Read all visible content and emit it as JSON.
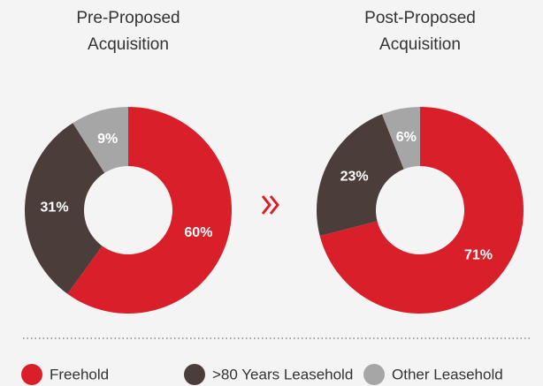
{
  "chart_data": [
    {
      "type": "donut",
      "title": "Pre-Proposed Acquisition",
      "categories": [
        "Freehold",
        ">80 Years Leasehold",
        "Other Leasehold"
      ],
      "values": [
        60,
        31,
        9
      ],
      "value_labels": [
        "60%",
        "31%",
        "9%"
      ],
      "colors": [
        "#d9202a",
        "#4b3d3a",
        "#a6a6a6"
      ]
    },
    {
      "type": "donut",
      "title": "Post-Proposed Acquisition",
      "values": [
        71,
        23,
        6
      ],
      "value_labels": [
        "71%",
        "23%",
        "6%"
      ],
      "colors": [
        "#d9202a",
        "#4b3d3a",
        "#a6a6a6"
      ]
    }
  ]
}
